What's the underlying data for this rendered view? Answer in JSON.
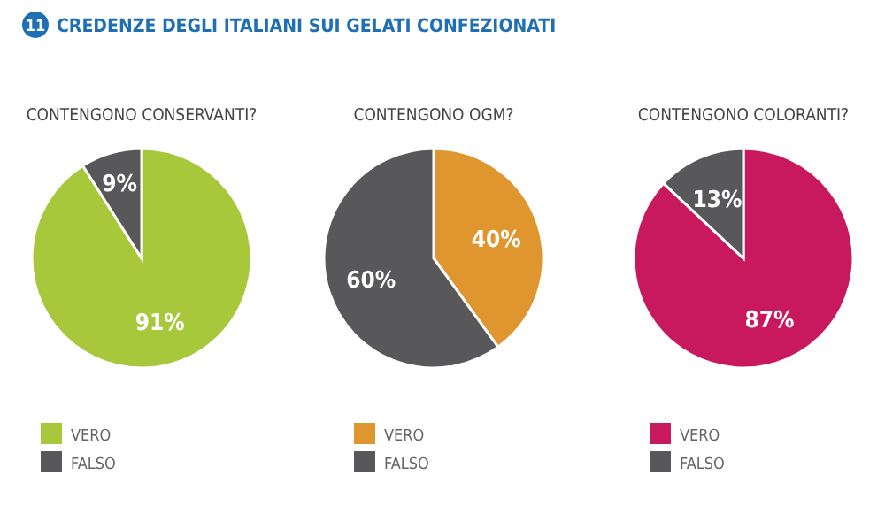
{
  "chart_data": [
    {
      "type": "pie",
      "title": "CONTENGONO CONSERVANTI?",
      "annotations": [
        "11",
        "CREDENZE DEGLI ITALIANI SUI GELATI CONFEZIONATI"
      ],
      "categories": [
        "VERO",
        "FALSO"
      ],
      "values": [
        91,
        9
      ],
      "value_labels": [
        "91%",
        "9%"
      ],
      "colors": [
        "#a6c83a",
        "#58585a"
      ],
      "legend": "bottom left"
    },
    {
      "type": "pie",
      "title": "CONTENGONO OGM?",
      "categories": [
        "VERO",
        "FALSO"
      ],
      "values": [
        40,
        60
      ],
      "value_labels": [
        "40%",
        "60%"
      ],
      "colors": [
        "#e0962e",
        "#58585a"
      ],
      "legend": "bottom left"
    },
    {
      "type": "pie",
      "title": "CONTENGONO COLORANTI?",
      "categories": [
        "VERO",
        "FALSO"
      ],
      "values": [
        87,
        13
      ],
      "value_labels": [
        "87%",
        "13%"
      ],
      "colors": [
        "#c8185e",
        "#58585a"
      ],
      "legend": "bottom left"
    }
  ]
}
